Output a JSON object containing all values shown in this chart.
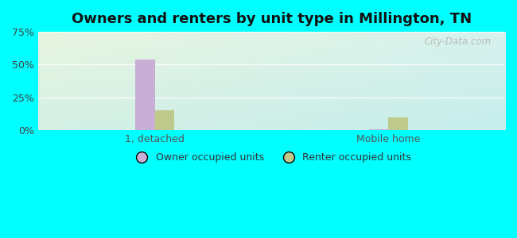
{
  "title": "Owners and renters by unit type in Millington, TN",
  "categories": [
    "1, detached",
    "Mobile home"
  ],
  "owner_values": [
    54.0,
    1.0
  ],
  "renter_values": [
    15.0,
    10.0
  ],
  "owner_color": "#c9aed6",
  "renter_color": "#bec98a",
  "ylim": [
    0,
    75
  ],
  "yticks": [
    0,
    25,
    50,
    75
  ],
  "ytick_labels": [
    "0%",
    "25%",
    "50%",
    "75%"
  ],
  "legend_owner": "Owner occupied units",
  "legend_renter": "Renter occupied units",
  "bg_color": "#00ffff",
  "bar_width": 0.35,
  "watermark": "City-Data.com",
  "group_positions": [
    0.25,
    0.75
  ],
  "grid_color": "#e0ece0",
  "plot_bg_topleft": "#e8f5e0",
  "plot_bg_bottomright": "#c8f0ee"
}
